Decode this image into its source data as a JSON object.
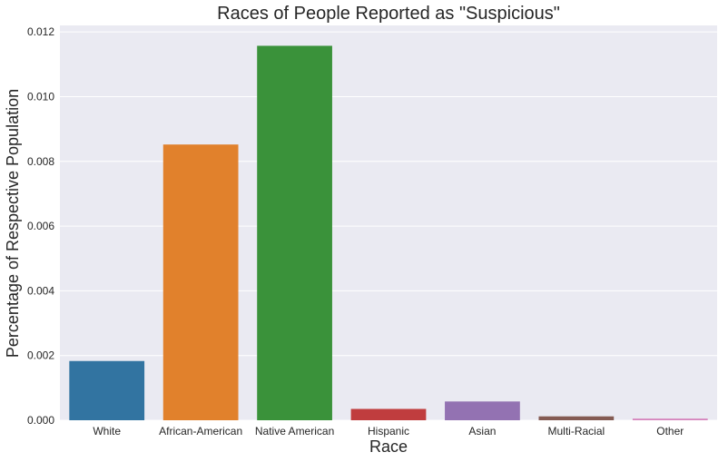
{
  "chart_data": {
    "type": "bar",
    "title": "Races of People Reported as \"Suspicious\"",
    "xlabel": "Race",
    "ylabel": "Percentage of Respective Population",
    "categories": [
      "White",
      "African-American",
      "Native American",
      "Hispanic",
      "Asian",
      "Multi-Racial",
      "Other"
    ],
    "values": [
      0.00183,
      0.00852,
      0.01157,
      0.00035,
      0.00058,
      0.00012,
      5e-05
    ],
    "colors": [
      "#3274a1",
      "#e1812c",
      "#3a923a",
      "#c03d3e",
      "#9372b2",
      "#845b53",
      "#d684bd"
    ],
    "ylim": [
      0,
      0.0122
    ],
    "yticks": [
      0.0,
      0.002,
      0.004,
      0.006,
      0.008,
      0.01,
      0.012
    ],
    "ytick_labels": [
      "0.000",
      "0.002",
      "0.004",
      "0.006",
      "0.008",
      "0.010",
      "0.012"
    ],
    "grid": true,
    "background": "#eaeaf2"
  }
}
